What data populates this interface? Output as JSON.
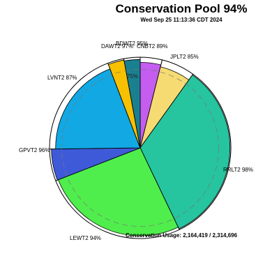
{
  "chart_data": {
    "type": "pie",
    "title": "Conservation Pool 94%",
    "subtitle": "Wed Sep 25 11:13:36 CDT 2024",
    "usage_text": "Conservation Usage: 2,164,419 / 2,314,696",
    "reference_ring_label": "75%",
    "reference_ring_percent": 75,
    "slices": [
      {
        "label": "CNBT2 89%",
        "share": 0.039,
        "fill_percent": 89,
        "color": "#c45df0"
      },
      {
        "label": "JPLT2 85%",
        "share": 0.06,
        "fill_percent": 85,
        "color": "#f5db72"
      },
      {
        "label": "RRLT2 98%",
        "share": 0.33,
        "fill_percent": 98,
        "color": "#26c49f"
      },
      {
        "label": "LEWT2 94%",
        "share": 0.262,
        "fill_percent": 94,
        "color": "#4fee4c"
      },
      {
        "label": "GPVT2 96%",
        "share": 0.057,
        "fill_percent": 96,
        "color": "#3f5ad8"
      },
      {
        "label": "LVNT2 87%",
        "share": 0.194,
        "fill_percent": 87,
        "color": "#11a8e3"
      },
      {
        "label": "DAWT2 97%",
        "share": 0.029,
        "fill_percent": 97,
        "color": "#f7c000"
      },
      {
        "label": "BDWT2 95%",
        "share": 0.029,
        "fill_percent": 95,
        "color": "#1a8090"
      }
    ]
  }
}
